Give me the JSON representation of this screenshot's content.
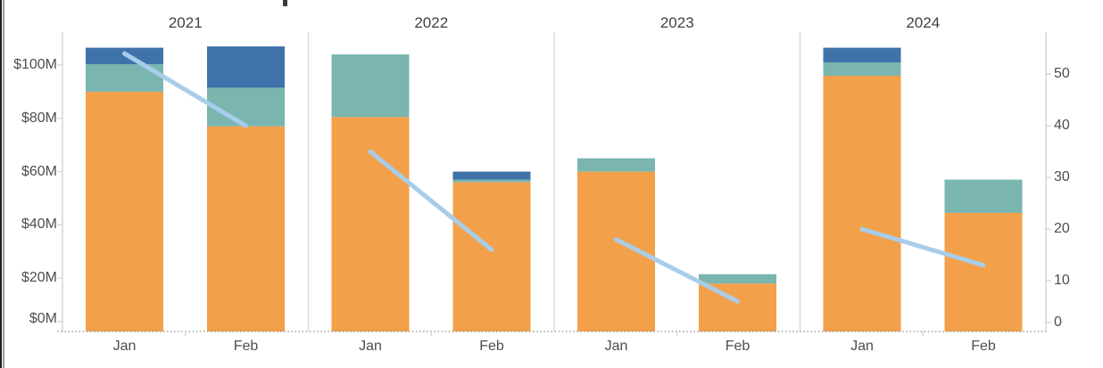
{
  "chart_data": {
    "type": "bar",
    "subtype": "stacked-bars-with-line-small-multiples",
    "title": "",
    "panel_field": "Year",
    "categories": [
      "Jan",
      "Feb"
    ],
    "left_axis": {
      "tick_labels": [
        "$0M",
        "$20M",
        "$40M",
        "$60M",
        "$80M",
        "$100M"
      ],
      "tick_values": [
        0,
        20,
        40,
        60,
        80,
        100
      ],
      "range": [
        0,
        112
      ],
      "unit": "USD millions"
    },
    "right_axis": {
      "tick_labels": [
        "0",
        "10",
        "20",
        "30",
        "40",
        "50"
      ],
      "tick_values": [
        0,
        10,
        20,
        30,
        40,
        50
      ],
      "range": [
        0,
        58
      ]
    },
    "stack_order": [
      "orange",
      "teal",
      "blue"
    ],
    "colors": {
      "orange": "#F3A04A",
      "teal": "#7AB5B0",
      "blue": "#3F72A9",
      "line": "#A8CDEA",
      "separator": "#D8D8D8",
      "axis_line": "#D0D0D0",
      "zero_line": "#8A8A8A",
      "label_text": "#4E4E4E"
    },
    "panels": [
      {
        "year": "2021",
        "bars": [
          {
            "month": "Jan",
            "orange": 90,
            "teal": 10.3,
            "blue": 6.2,
            "total": 106.5
          },
          {
            "month": "Feb",
            "orange": 77,
            "teal": 14.5,
            "blue": 15.5,
            "total": 107
          }
        ],
        "line": [
          54,
          40
        ]
      },
      {
        "year": "2022",
        "bars": [
          {
            "month": "Jan",
            "orange": 80.5,
            "teal": 23.5,
            "blue": 0,
            "total": 104
          },
          {
            "month": "Feb",
            "orange": 56,
            "teal": 1,
            "blue": 3,
            "total": 60
          }
        ],
        "line": [
          35,
          16
        ]
      },
      {
        "year": "2023",
        "bars": [
          {
            "month": "Jan",
            "orange": 60,
            "teal": 5,
            "blue": 0,
            "total": 65
          },
          {
            "month": "Feb",
            "orange": 18,
            "teal": 3.5,
            "blue": 0,
            "total": 21.5
          }
        ],
        "line": [
          18,
          6
        ]
      },
      {
        "year": "2024",
        "bars": [
          {
            "month": "Jan",
            "orange": 96,
            "teal": 5,
            "blue": 5.5,
            "total": 106.5
          },
          {
            "month": "Feb",
            "orange": 44.5,
            "teal": 12.5,
            "blue": 0,
            "total": 57
          }
        ],
        "line": [
          20,
          13
        ]
      }
    ],
    "legend_position": "none",
    "grid": "off"
  }
}
